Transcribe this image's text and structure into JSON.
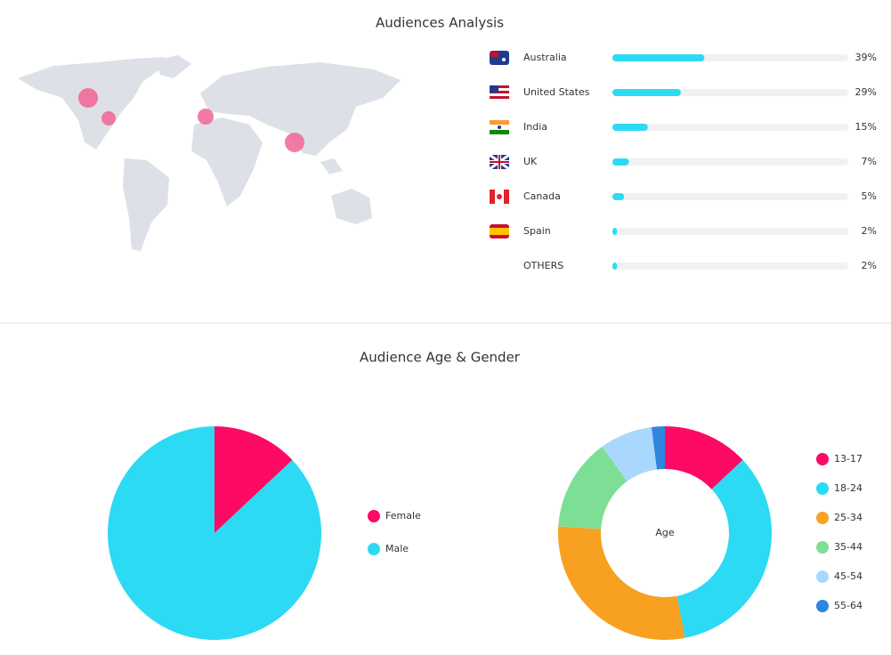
{
  "age_gender_title": "Audience Age & Gender",
  "chart_data": [
    {
      "type": "bar",
      "orientation": "horizontal",
      "title": "Audiences Analysis",
      "categories": [
        "Australia",
        "United States",
        "India",
        "UK",
        "Canada",
        "Spain",
        "OTHERS"
      ],
      "values": [
        39,
        29,
        15,
        7,
        5,
        2,
        2
      ],
      "value_labels": [
        "39%",
        "29%",
        "15%",
        "7%",
        "5%",
        "2%",
        "2%"
      ],
      "xlim": [
        0,
        100
      ],
      "color": "#2ddaf4"
    },
    {
      "type": "pie",
      "categories": [
        "Female",
        "Male"
      ],
      "values": [
        13,
        87
      ],
      "colors": [
        "#fc0a63",
        "#2ddaf4"
      ]
    },
    {
      "type": "donut",
      "center_label": "Age",
      "categories": [
        "13-17",
        "18-24",
        "25-34",
        "35-44",
        "45-54",
        "55-64"
      ],
      "values": [
        13,
        34,
        29,
        14,
        8,
        2
      ],
      "colors": [
        "#fc0a63",
        "#2ddaf4",
        "#f8a01f",
        "#7ddf95",
        "#a9d8fc",
        "#2e86de"
      ]
    }
  ]
}
